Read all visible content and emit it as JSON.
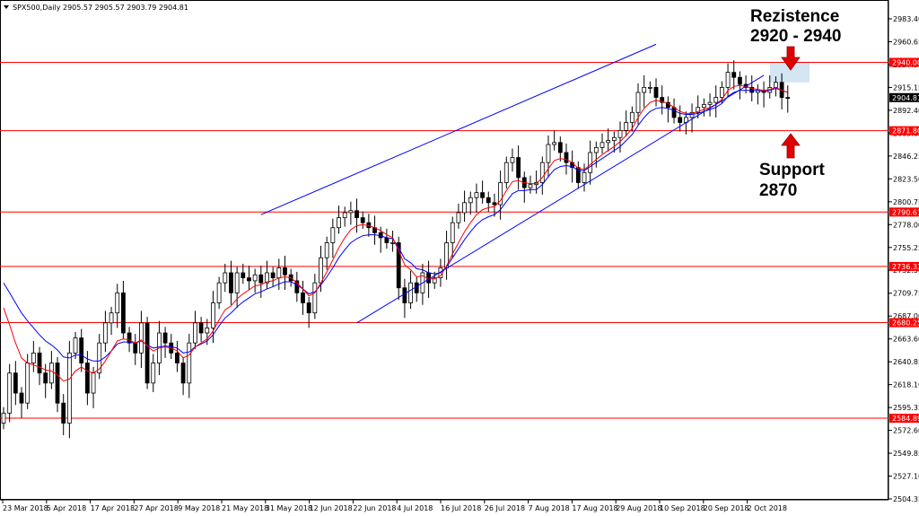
{
  "symbol_label": "SPX500,Daily  2905.57 2905.57 2903.79 2904.81",
  "colors": {
    "level_line": "#ff0000",
    "trend_line": "#0000ff",
    "ma_fast": "#ff0000",
    "ma_slow": "#0000ff",
    "candle": "#000000",
    "zone": "#cfe2f3",
    "arrow": "#e00000",
    "current_price_bg": "#000000"
  },
  "annotations": {
    "resistance_line1": "Rezistence",
    "resistance_line2": "2920 - 2940",
    "support_line1": "Support",
    "support_line2": "2870"
  },
  "current_price": {
    "value": 2904.81,
    "label": "2904.81"
  },
  "chart_data": {
    "type": "candlestick",
    "instrument": "SPX500",
    "timeframe": "Daily",
    "ylim": [
      2500.0,
      2990.0
    ],
    "y_ticks": [
      "2983.40",
      "2960.65",
      "2937.90",
      "2915.15",
      "2892.40",
      "2869.65",
      "2846.25",
      "2823.50",
      "2800.75",
      "2778.00",
      "2755.25",
      "2732.50",
      "2709.75",
      "2687.00",
      "2663.60",
      "2640.85",
      "2618.10",
      "2595.35",
      "2572.60",
      "2549.85",
      "2527.10",
      "2504.35"
    ],
    "x_ticks": [
      "23 Mar 2018",
      "5 Apr 2018",
      "17 Apr 2018",
      "27 Apr 2018",
      "9 May 2018",
      "21 May 2018",
      "31 May 2018",
      "12 Jun 2018",
      "22 Jun 2018",
      "4 Jul 2018",
      "16 Jul 2018",
      "26 Jul 2018",
      "7 Aug 2018",
      "17 Aug 2018",
      "29 Aug 2018",
      "10 Sep 2018",
      "20 Sep 2018",
      "2 Oct 2018"
    ],
    "horizontal_levels": [
      {
        "value": 2940.0,
        "label": "2940.00"
      },
      {
        "value": 2871.8,
        "label": "2871.80"
      },
      {
        "value": 2790.61,
        "label": "2790.61"
      },
      {
        "value": 2736.33,
        "label": "2736.33"
      },
      {
        "value": 2680.25,
        "label": "2680.25"
      },
      {
        "value": 2584.89,
        "label": "2584.89"
      }
    ],
    "resistance_zone": [
      2920,
      2940
    ],
    "channel_lines": [
      {
        "name": "upper",
        "points": [
          [
            43,
            2788
          ],
          [
            109,
            2958
          ]
        ]
      },
      {
        "name": "lower",
        "points": [
          [
            59,
            2680
          ],
          [
            127,
            2927
          ]
        ]
      }
    ],
    "close": [
      2590,
      2630,
      2610,
      2600,
      2640,
      2650,
      2630,
      2620,
      2640,
      2600,
      2580,
      2650,
      2665,
      2640,
      2610,
      2630,
      2660,
      2680,
      2690,
      2710,
      2670,
      2660,
      2650,
      2680,
      2620,
      2640,
      2670,
      2660,
      2650,
      2640,
      2620,
      2660,
      2680,
      2670,
      2675,
      2700,
      2720,
      2730,
      2710,
      2730,
      2725,
      2722,
      2728,
      2720,
      2730,
      2725,
      2735,
      2728,
      2722,
      2710,
      2700,
      2690,
      2720,
      2745,
      2760,
      2775,
      2785,
      2790,
      2792,
      2785,
      2780,
      2775,
      2770,
      2765,
      2760,
      2760,
      2715,
      2700,
      2720,
      2710,
      2730,
      2720,
      2725,
      2735,
      2760,
      2780,
      2790,
      2800,
      2805,
      2810,
      2805,
      2800,
      2798,
      2820,
      2840,
      2845,
      2825,
      2815,
      2818,
      2820,
      2840,
      2858,
      2860,
      2850,
      2840,
      2835,
      2820,
      2830,
      2850,
      2855,
      2860,
      2862,
      2865,
      2872,
      2880,
      2890,
      2910,
      2915,
      2915,
      2905,
      2900,
      2895,
      2885,
      2880,
      2885,
      2890,
      2895,
      2898,
      2900,
      2905,
      2915,
      2930,
      2925,
      2918,
      2915,
      2910,
      2912,
      2910,
      2915,
      2920,
      2905,
      2904.81
    ],
    "ma_fast": [
      2695,
      2678,
      2660,
      2645,
      2640,
      2638,
      2636,
      2633,
      2632,
      2628,
      2622,
      2624,
      2632,
      2636,
      2632,
      2630,
      2634,
      2642,
      2652,
      2662,
      2664,
      2663,
      2660,
      2663,
      2657,
      2652,
      2655,
      2656,
      2655,
      2652,
      2645,
      2648,
      2656,
      2660,
      2664,
      2672,
      2683,
      2693,
      2697,
      2704,
      2709,
      2713,
      2717,
      2718,
      2721,
      2722,
      2725,
      2726,
      2725,
      2720,
      2714,
      2707,
      2710,
      2720,
      2731,
      2743,
      2755,
      2765,
      2773,
      2777,
      2778,
      2777,
      2775,
      2772,
      2768,
      2765,
      2752,
      2738,
      2733,
      2726,
      2727,
      2724,
      2724,
      2727,
      2737,
      2749,
      2760,
      2771,
      2780,
      2788,
      2793,
      2795,
      2796,
      2802,
      2812,
      2821,
      2822,
      2820,
      2819,
      2819,
      2825,
      2834,
      2842,
      2844,
      2843,
      2840,
      2834,
      2833,
      2838,
      2843,
      2848,
      2852,
      2856,
      2861,
      2867,
      2874,
      2885,
      2894,
      2900,
      2902,
      2901,
      2899,
      2895,
      2891,
      2889,
      2889,
      2891,
      2893,
      2895,
      2898,
      2903,
      2912,
      2916,
      2917,
      2916,
      2914,
      2913,
      2912,
      2913,
      2915,
      2912,
      2910
    ],
    "ma_slow": [
      2720,
      2710,
      2700,
      2690,
      2682,
      2675,
      2668,
      2662,
      2658,
      2653,
      2646,
      2645,
      2648,
      2648,
      2644,
      2642,
      2642,
      2646,
      2652,
      2659,
      2661,
      2661,
      2660,
      2662,
      2658,
      2655,
      2656,
      2657,
      2656,
      2655,
      2650,
      2651,
      2656,
      2659,
      2662,
      2668,
      2677,
      2685,
      2690,
      2696,
      2701,
      2705,
      2709,
      2711,
      2714,
      2716,
      2719,
      2721,
      2721,
      2718,
      2714,
      2709,
      2711,
      2718,
      2726,
      2735,
      2745,
      2753,
      2760,
      2764,
      2767,
      2768,
      2768,
      2767,
      2765,
      2764,
      2755,
      2744,
      2740,
      2734,
      2733,
      2730,
      2729,
      2730,
      2736,
      2745,
      2754,
      2763,
      2771,
      2778,
      2783,
      2786,
      2788,
      2793,
      2801,
      2809,
      2812,
      2812,
      2813,
      2813,
      2818,
      2826,
      2833,
      2836,
      2837,
      2836,
      2832,
      2832,
      2836,
      2840,
      2844,
      2848,
      2852,
      2856,
      2862,
      2868,
      2877,
      2885,
      2891,
      2894,
      2895,
      2894,
      2892,
      2889,
      2888,
      2888,
      2889,
      2891,
      2893,
      2895,
      2899,
      2906,
      2910,
      2912,
      2912,
      2912,
      2912,
      2911,
      2912,
      2914,
      2912,
      2910
    ]
  }
}
